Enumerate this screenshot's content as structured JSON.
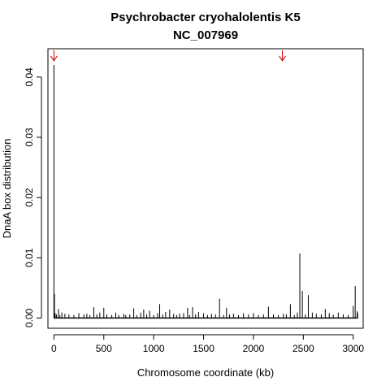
{
  "chart_data": {
    "type": "bar",
    "title": "Psychrobacter cryohalolentis K5",
    "subtitle": "NC_007969",
    "xlabel": "Chromosome coordinate (kb)",
    "ylabel": "DnaA box distribution",
    "xlim": [
      -60,
      3100
    ],
    "ylim": [
      -0.0017,
      0.0447
    ],
    "x_ticks": [
      0,
      500,
      1000,
      1500,
      2000,
      2500,
      3000
    ],
    "x_tick_labels": [
      "0",
      "500",
      "1000",
      "1500",
      "2000",
      "2500",
      "3000"
    ],
    "y_ticks": [
      0.0,
      0.01,
      0.02,
      0.03,
      0.04
    ],
    "y_tick_labels": [
      "0.00",
      "0.01",
      "0.02",
      "0.03",
      "0.04"
    ],
    "grid": false,
    "bar_color": "#000000",
    "marker_color": "#cc0000",
    "series": [
      {
        "x": [
          0,
          5,
          12,
          25,
          45,
          60,
          80,
          110,
          150,
          200,
          250,
          300,
          330,
          360,
          400,
          430,
          460,
          500,
          530,
          580,
          620,
          650,
          700,
          720,
          760,
          800,
          830,
          870,
          900,
          930,
          960,
          1000,
          1040,
          1060,
          1090,
          1120,
          1160,
          1200,
          1230,
          1260,
          1300,
          1340,
          1360,
          1390,
          1420,
          1450,
          1500,
          1540,
          1580,
          1620,
          1660,
          1700,
          1730,
          1760,
          1800,
          1850,
          1900,
          1950,
          2000,
          2050,
          2100,
          2150,
          2200,
          2250,
          2300,
          2330,
          2370,
          2410,
          2440,
          2465,
          2490,
          2520,
          2550,
          2590,
          2630,
          2680,
          2720,
          2760,
          2800,
          2850,
          2900,
          2950,
          3000,
          3020,
          3040,
          3045
        ],
        "y": [
          0.042,
          0.004,
          0.0008,
          0.0006,
          0.0015,
          0.0005,
          0.0009,
          0.0007,
          0.0006,
          0.0005,
          0.0008,
          0.0006,
          0.0007,
          0.0005,
          0.0018,
          0.0006,
          0.0009,
          0.0017,
          0.0006,
          0.0005,
          0.0009,
          0.0005,
          0.0007,
          0.0005,
          0.0006,
          0.0016,
          0.0005,
          0.0009,
          0.0014,
          0.0006,
          0.0012,
          0.0005,
          0.0008,
          0.0023,
          0.0006,
          0.001,
          0.0014,
          0.0007,
          0.0005,
          0.0007,
          0.0008,
          0.0017,
          0.0005,
          0.0018,
          0.0006,
          0.001,
          0.0008,
          0.0005,
          0.0007,
          0.0006,
          0.0032,
          0.0005,
          0.0017,
          0.0006,
          0.0007,
          0.0005,
          0.0008,
          0.0006,
          0.0008,
          0.0005,
          0.0006,
          0.0019,
          0.0006,
          0.0005,
          0.0007,
          0.0006,
          0.0023,
          0.0005,
          0.0009,
          0.0107,
          0.0045,
          0.0006,
          0.0038,
          0.0009,
          0.0007,
          0.0006,
          0.0015,
          0.0008,
          0.0006,
          0.0009,
          0.0006,
          0.0005,
          0.002,
          0.0053,
          0.0011,
          0.0008
        ]
      }
    ],
    "arrows": [
      {
        "x": 0,
        "y": 0.0427
      },
      {
        "x": 2290,
        "y": 0.0427
      }
    ]
  }
}
